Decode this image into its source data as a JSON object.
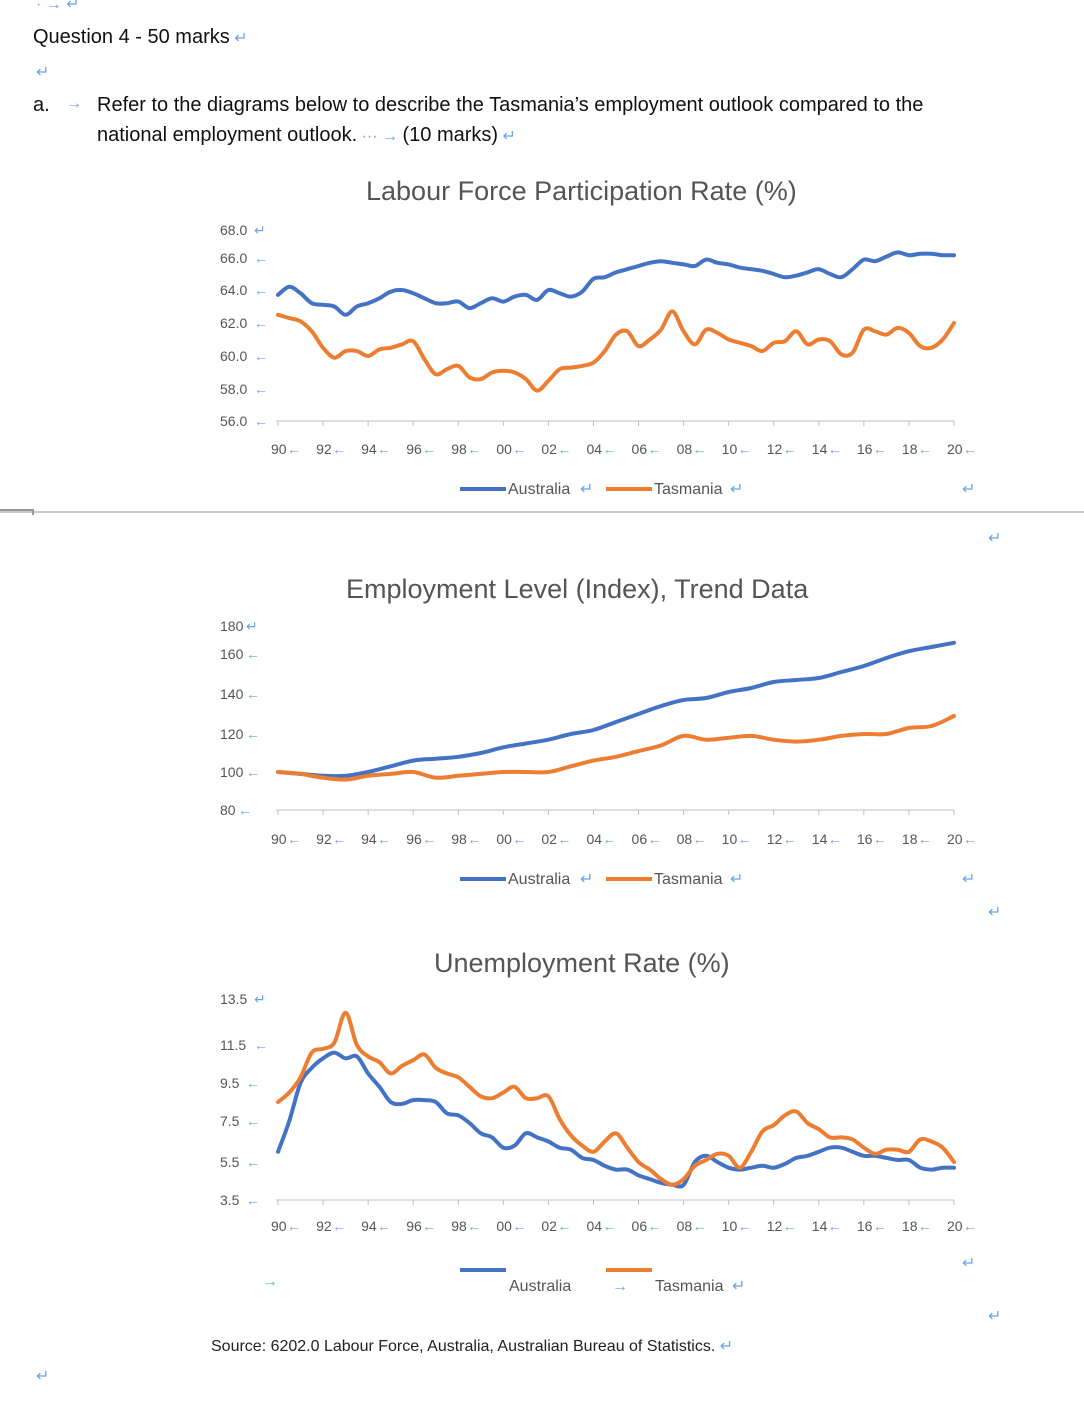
{
  "question": {
    "heading": "Question 4 - 50 marks",
    "part_label": "a.",
    "text_line1": "Refer to the diagrams below to describe the Tasmania’s employment outlook compared to the",
    "text_line2": "national employment outlook.",
    "marks": "(10 marks)"
  },
  "colors": {
    "australia": "#4472c4",
    "tasmania": "#ed7d31",
    "axis": "#bfbfbf",
    "text": "#595959"
  },
  "chart_data": [
    {
      "type": "line",
      "title": "Labour Force Participation Rate (%)",
      "ylim": [
        56,
        68
      ],
      "y_ticks": [
        "68.0",
        "66.0",
        "64.0",
        "62.0",
        "60.0",
        "58.0",
        "56.0"
      ],
      "x_ticks": [
        "90",
        "92",
        "94",
        "96",
        "98",
        "00",
        "02",
        "04",
        "06",
        "08",
        "10",
        "12",
        "14",
        "16",
        "18",
        "20"
      ],
      "x_range": [
        1990,
        2020
      ],
      "legend": [
        "Australia",
        "Tasmania"
      ],
      "series": [
        {
          "name": "Australia",
          "x": [
            1990,
            1990.5,
            1991,
            1991.5,
            1992,
            1992.5,
            1993,
            1993.5,
            1994,
            1994.5,
            1995,
            1995.5,
            1996,
            1996.5,
            1997,
            1997.5,
            1998,
            1998.5,
            1999,
            1999.5,
            2000,
            2000.5,
            2001,
            2001.5,
            2002,
            2002.5,
            2003,
            2003.5,
            2004,
            2004.5,
            2005,
            2005.5,
            2006,
            2006.5,
            2007,
            2007.5,
            2008,
            2008.5,
            2009,
            2009.5,
            2010,
            2010.5,
            2011,
            2011.5,
            2012,
            2012.5,
            2013,
            2013.5,
            2014,
            2014.5,
            2015,
            2015.5,
            2016,
            2016.5,
            2017,
            2017.5,
            2018,
            2018.5,
            2019,
            2019.5,
            2020
          ],
          "values": [
            63.7,
            64.2,
            63.8,
            63.2,
            63.1,
            63.0,
            62.5,
            63.0,
            63.2,
            63.5,
            63.9,
            64.0,
            63.8,
            63.5,
            63.2,
            63.2,
            63.3,
            62.9,
            63.2,
            63.5,
            63.3,
            63.6,
            63.7,
            63.4,
            64.0,
            63.8,
            63.6,
            63.9,
            64.7,
            64.8,
            65.1,
            65.3,
            65.5,
            65.7,
            65.8,
            65.7,
            65.6,
            65.5,
            65.9,
            65.7,
            65.6,
            65.4,
            65.3,
            65.2,
            65.0,
            64.8,
            64.9,
            65.1,
            65.3,
            65.0,
            64.8,
            65.3,
            65.9,
            65.8,
            66.1,
            66.4,
            66.2,
            66.3,
            66.3,
            66.2,
            66.2
          ]
        },
        {
          "name": "Tasmania",
          "x": [
            1990,
            1990.5,
            1991,
            1991.5,
            1992,
            1992.5,
            1993,
            1993.5,
            1994,
            1994.5,
            1995,
            1995.5,
            1996,
            1996.5,
            1997,
            1997.5,
            1998,
            1998.5,
            1999,
            1999.5,
            2000,
            2000.5,
            2001,
            2001.5,
            2002,
            2002.5,
            2003,
            2003.5,
            2004,
            2004.5,
            2005,
            2005.5,
            2006,
            2006.5,
            2007,
            2007.5,
            2008,
            2008.5,
            2009,
            2009.5,
            2010,
            2010.5,
            2011,
            2011.5,
            2012,
            2012.5,
            2013,
            2013.5,
            2014,
            2014.5,
            2015,
            2015.5,
            2016,
            2016.5,
            2017,
            2017.5,
            2018,
            2018.5,
            2019,
            2019.5,
            2020
          ],
          "values": [
            62.5,
            62.3,
            62.1,
            61.5,
            60.5,
            59.9,
            60.3,
            60.3,
            60.0,
            60.4,
            60.5,
            60.7,
            60.9,
            59.8,
            58.9,
            59.2,
            59.4,
            58.7,
            58.6,
            59.0,
            59.1,
            59.0,
            58.6,
            57.9,
            58.5,
            59.2,
            59.3,
            59.4,
            59.6,
            60.3,
            61.3,
            61.5,
            60.6,
            61.0,
            61.6,
            62.7,
            61.5,
            60.7,
            61.6,
            61.4,
            61.0,
            60.8,
            60.6,
            60.3,
            60.8,
            60.9,
            61.5,
            60.7,
            61.0,
            60.9,
            60.1,
            60.2,
            61.6,
            61.5,
            61.3,
            61.7,
            61.4,
            60.6,
            60.5,
            61.0,
            62.0
          ]
        }
      ]
    },
    {
      "type": "line",
      "title": "Employment Level (Index), Trend Data",
      "ylim": [
        80,
        180
      ],
      "y_ticks": [
        "180",
        "160",
        "140",
        "120",
        "100",
        "80"
      ],
      "x_ticks": [
        "90",
        "92",
        "94",
        "96",
        "98",
        "00",
        "02",
        "04",
        "06",
        "08",
        "10",
        "12",
        "14",
        "16",
        "18",
        "20"
      ],
      "x_range": [
        1990,
        2020
      ],
      "legend": [
        "Australia",
        "Tasmania"
      ],
      "series": [
        {
          "name": "Australia",
          "x": [
            1990,
            1991,
            1992,
            1993,
            1994,
            1995,
            1996,
            1997,
            1998,
            1999,
            2000,
            2001,
            2002,
            2003,
            2004,
            2005,
            2006,
            2007,
            2008,
            2009,
            2010,
            2011,
            2012,
            2013,
            2014,
            2015,
            2016,
            2017,
            2018,
            2019,
            2020
          ],
          "values": [
            100,
            99,
            98,
            98,
            100,
            103,
            106,
            107,
            108,
            110,
            113,
            115,
            117,
            120,
            122,
            126,
            130,
            134,
            137,
            138,
            141,
            143,
            146,
            147,
            148,
            151,
            154,
            158,
            162,
            165,
            168
          ]
        },
        {
          "name": "Tasmania",
          "x": [
            1990,
            1991,
            1992,
            1993,
            1994,
            1995,
            1996,
            1997,
            1998,
            1999,
            2000,
            2001,
            2002,
            2003,
            2004,
            2005,
            2006,
            2007,
            2008,
            2009,
            2010,
            2011,
            2012,
            2013,
            2014,
            2015,
            2016,
            2017,
            2018,
            2019,
            2020
          ],
          "values": [
            100,
            99,
            97,
            96,
            98,
            99,
            100,
            97,
            98,
            99,
            100,
            100,
            100,
            103,
            106,
            108,
            111,
            114,
            119,
            117,
            118,
            119,
            117,
            116,
            117,
            119,
            120,
            120,
            123,
            124,
            129
          ]
        }
      ]
    },
    {
      "type": "line",
      "title": "Unemployment Rate (%)",
      "ylim": [
        3.5,
        13.5
      ],
      "y_ticks": [
        "13.5",
        "11.5",
        "9.5",
        "7.5",
        "5.5",
        "3.5"
      ],
      "x_ticks": [
        "90",
        "92",
        "94",
        "96",
        "98",
        "00",
        "02",
        "04",
        "06",
        "08",
        "10",
        "12",
        "14",
        "16",
        "18",
        "20"
      ],
      "x_range": [
        1990,
        2020
      ],
      "legend": [
        "Australia",
        "Tasmania"
      ],
      "series": [
        {
          "name": "Australia",
          "x": [
            1990,
            1990.5,
            1991,
            1991.5,
            1992,
            1992.5,
            1993,
            1993.5,
            1994,
            1994.5,
            1995,
            1995.5,
            1996,
            1996.5,
            1997,
            1997.5,
            1998,
            1998.5,
            1999,
            1999.5,
            2000,
            2000.5,
            2001,
            2001.5,
            2002,
            2002.5,
            2003,
            2003.5,
            2004,
            2004.5,
            2005,
            2005.5,
            2006,
            2006.5,
            2007,
            2007.5,
            2008,
            2008.5,
            2009,
            2009.5,
            2010,
            2010.5,
            2011,
            2011.5,
            2012,
            2012.5,
            2013,
            2013.5,
            2014,
            2014.5,
            2015,
            2015.5,
            2016,
            2016.5,
            2017,
            2017.5,
            2018,
            2018.5,
            2019,
            2019.5,
            2020
          ],
          "values": [
            6.0,
            7.5,
            9.5,
            10.3,
            10.8,
            11.1,
            10.8,
            10.9,
            10.0,
            9.3,
            8.5,
            8.4,
            8.6,
            8.6,
            8.5,
            7.9,
            7.8,
            7.4,
            6.9,
            6.7,
            6.2,
            6.3,
            6.9,
            6.7,
            6.5,
            6.2,
            6.1,
            5.7,
            5.6,
            5.3,
            5.1,
            5.1,
            4.8,
            4.6,
            4.4,
            4.3,
            4.3,
            5.5,
            5.8,
            5.5,
            5.2,
            5.1,
            5.2,
            5.3,
            5.2,
            5.4,
            5.7,
            5.8,
            6.0,
            6.2,
            6.2,
            6.0,
            5.8,
            5.8,
            5.7,
            5.6,
            5.6,
            5.2,
            5.1,
            5.2,
            5.2
          ]
        },
        {
          "name": "Tasmania",
          "x": [
            1990,
            1990.5,
            1991,
            1991.5,
            1992,
            1992.5,
            1993,
            1993.5,
            1994,
            1994.5,
            1995,
            1995.5,
            1996,
            1996.5,
            1997,
            1997.5,
            1998,
            1998.5,
            1999,
            1999.5,
            2000,
            2000.5,
            2001,
            2001.5,
            2002,
            2002.5,
            2003,
            2003.5,
            2004,
            2004.5,
            2005,
            2005.5,
            2006,
            2006.5,
            2007,
            2007.5,
            2008,
            2008.5,
            2009,
            2009.5,
            2010,
            2010.5,
            2011,
            2011.5,
            2012,
            2012.5,
            2013,
            2013.5,
            2014,
            2014.5,
            2015,
            2015.5,
            2016,
            2016.5,
            2017,
            2017.5,
            2018,
            2018.5,
            2019,
            2019.5,
            2020
          ],
          "values": [
            8.5,
            9.0,
            9.8,
            11.1,
            11.3,
            11.6,
            12.9,
            11.5,
            10.9,
            10.6,
            10.0,
            10.4,
            10.7,
            11.0,
            10.3,
            10.0,
            9.8,
            9.3,
            8.8,
            8.7,
            9.0,
            9.3,
            8.7,
            8.7,
            8.8,
            7.6,
            6.8,
            6.3,
            6.0,
            6.5,
            6.9,
            6.2,
            5.5,
            5.1,
            4.6,
            4.3,
            4.6,
            5.3,
            5.6,
            5.9,
            5.8,
            5.2,
            6.0,
            7.0,
            7.3,
            7.8,
            8.0,
            7.4,
            7.1,
            6.7,
            6.7,
            6.6,
            6.2,
            5.9,
            6.1,
            6.1,
            6.0,
            6.6,
            6.5,
            6.2,
            5.5
          ]
        }
      ]
    }
  ],
  "source": "Source: 6202.0 Labour Force, Australia, Australian Bureau of Statistics."
}
